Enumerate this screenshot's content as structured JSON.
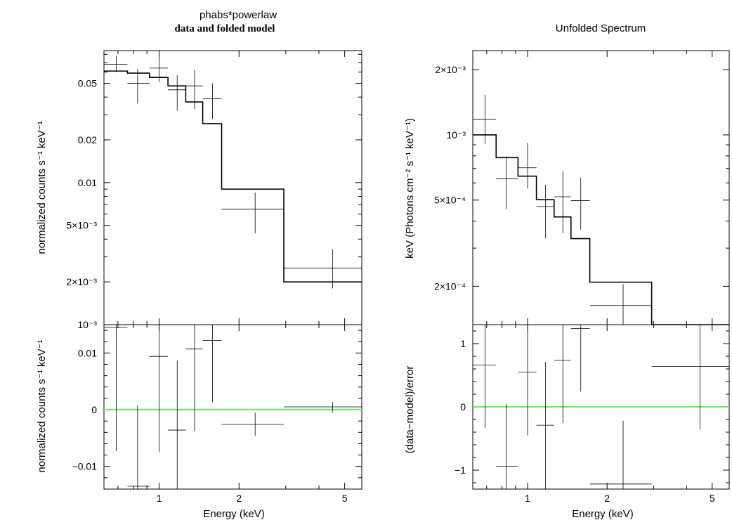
{
  "chart_data": [
    {
      "type": "step",
      "title": "phabs*powerlaw",
      "subtitle": "data and folded model",
      "xlabel": "Energy (keV)",
      "xscale": "log",
      "xlim": [
        0.62,
        5.8
      ],
      "xticks": [
        {
          "v": 1,
          "label": "1"
        },
        {
          "v": 2,
          "label": "2"
        },
        {
          "v": 5,
          "label": "5"
        }
      ],
      "top": {
        "ylabel": "normalized counts s⁻¹ keV⁻¹",
        "yscale": "log",
        "ylim": [
          0.001,
          0.085
        ],
        "yticks": [
          {
            "v": 0.05,
            "label": "0.05"
          },
          {
            "v": 0.02,
            "label": "0.02"
          },
          {
            "v": 0.01,
            "label": "0.01"
          },
          {
            "v": 0.005,
            "label": "5×10⁻³"
          },
          {
            "v": 0.002,
            "label": "2×10⁻³"
          },
          {
            "v": 0.001,
            "label": "10⁻³"
          }
        ],
        "data": [
          {
            "x": 0.69,
            "xlo": 0.62,
            "xhi": 0.76,
            "y": 0.068,
            "ylo": 0.06,
            "yhi": 0.078
          },
          {
            "x": 0.83,
            "xlo": 0.76,
            "xhi": 0.92,
            "y": 0.05,
            "ylo": 0.036,
            "yhi": 0.063
          },
          {
            "x": 1.0,
            "xlo": 0.92,
            "xhi": 1.08,
            "y": 0.064,
            "ylo": 0.051,
            "yhi": 0.084
          },
          {
            "x": 1.17,
            "xlo": 1.08,
            "xhi": 1.26,
            "y": 0.045,
            "ylo": 0.032,
            "yhi": 0.057
          },
          {
            "x": 1.36,
            "xlo": 1.26,
            "xhi": 1.46,
            "y": 0.048,
            "ylo": 0.033,
            "yhi": 0.062
          },
          {
            "x": 1.59,
            "xlo": 1.46,
            "xhi": 1.72,
            "y": 0.039,
            "ylo": 0.028,
            "yhi": 0.05
          },
          {
            "x": 2.3,
            "xlo": 1.72,
            "xhi": 2.95,
            "y": 0.0065,
            "ylo": 0.0044,
            "yhi": 0.0085
          },
          {
            "x": 4.5,
            "xlo": 2.95,
            "xhi": 5.8,
            "y": 0.0025,
            "ylo": 0.0018,
            "yhi": 0.0034
          }
        ],
        "model": [
          {
            "xlo": 0.62,
            "xhi": 0.76,
            "y": 0.061
          },
          {
            "xlo": 0.76,
            "xhi": 0.92,
            "y": 0.059
          },
          {
            "xlo": 0.92,
            "xhi": 1.08,
            "y": 0.055
          },
          {
            "xlo": 1.08,
            "xhi": 1.26,
            "y": 0.048
          },
          {
            "xlo": 1.26,
            "xhi": 1.46,
            "y": 0.037
          },
          {
            "xlo": 1.46,
            "xhi": 1.72,
            "y": 0.026
          },
          {
            "xlo": 1.72,
            "xhi": 2.95,
            "y": 0.009
          },
          {
            "xlo": 2.95,
            "xhi": 5.8,
            "y": 0.002
          }
        ]
      },
      "bottom": {
        "ylabel": "normalized counts s⁻¹ keV⁻¹",
        "yscale": "linear",
        "ylim": [
          -0.014,
          0.015
        ],
        "yticks": [
          {
            "v": 0.01,
            "label": "0.01"
          },
          {
            "v": 0,
            "label": "0"
          },
          {
            "v": -0.01,
            "label": "−0.01"
          }
        ],
        "zero_line_color": "#66ee66",
        "data": [
          {
            "x": 0.69,
            "xlo": 0.62,
            "xhi": 0.76,
            "y": 0.0145,
            "ylo": -0.0073,
            "yhi": 0.015
          },
          {
            "x": 0.83,
            "xlo": 0.76,
            "xhi": 0.92,
            "y": -0.0135,
            "ylo": -0.014,
            "yhi": 0.0008
          },
          {
            "x": 1.0,
            "xlo": 0.92,
            "xhi": 1.08,
            "y": 0.0094,
            "ylo": -0.0075,
            "yhi": 0.015
          },
          {
            "x": 1.17,
            "xlo": 1.08,
            "xhi": 1.26,
            "y": -0.0036,
            "ylo": -0.014,
            "yhi": 0.0087
          },
          {
            "x": 1.36,
            "xlo": 1.26,
            "xhi": 1.46,
            "y": 0.0107,
            "ylo": -0.0038,
            "yhi": 0.015
          },
          {
            "x": 1.59,
            "xlo": 1.46,
            "xhi": 1.72,
            "y": 0.0122,
            "ylo": 0.0013,
            "yhi": 0.015
          },
          {
            "x": 2.3,
            "xlo": 1.72,
            "xhi": 2.95,
            "y": -0.0026,
            "ylo": -0.0046,
            "yhi": -0.0005
          },
          {
            "x": 4.5,
            "xlo": 2.95,
            "xhi": 5.8,
            "y": 0.0005,
            "ylo": -0.0005,
            "yhi": 0.0014
          }
        ]
      }
    },
    {
      "type": "step",
      "title": "Unfolded Spectrum",
      "xlabel": "Energy (keV)",
      "xscale": "log",
      "xlim": [
        0.62,
        5.8
      ],
      "xticks": [
        {
          "v": 1,
          "label": "1"
        },
        {
          "v": 2,
          "label": "2"
        },
        {
          "v": 5,
          "label": "5"
        }
      ],
      "top": {
        "ylabel": "keV (Photons cm⁻² s⁻¹ keV⁻¹)",
        "yscale": "log",
        "ylim": [
          0.000133,
          0.00245
        ],
        "yticks": [
          {
            "v": 0.002,
            "label": "2×10⁻³"
          },
          {
            "v": 0.001,
            "label": "10⁻³"
          },
          {
            "v": 0.0005,
            "label": "5×10⁻⁴"
          },
          {
            "v": 0.0002,
            "label": "2×10⁻⁴"
          }
        ],
        "data": [
          {
            "x": 0.69,
            "xlo": 0.62,
            "xhi": 0.76,
            "y": 0.00118,
            "ylo": 0.00091,
            "yhi": 0.00153
          },
          {
            "x": 0.83,
            "xlo": 0.76,
            "xhi": 0.92,
            "y": 0.000627,
            "ylo": 0.000455,
            "yhi": 0.000795
          },
          {
            "x": 1.0,
            "xlo": 0.92,
            "xhi": 1.08,
            "y": 0.000705,
            "ylo": 0.000565,
            "yhi": 0.00092
          },
          {
            "x": 1.17,
            "xlo": 1.08,
            "xhi": 1.26,
            "y": 0.000467,
            "ylo": 0.000333,
            "yhi": 0.000588
          },
          {
            "x": 1.36,
            "xlo": 1.26,
            "xhi": 1.46,
            "y": 0.000518,
            "ylo": 0.000353,
            "yhi": 0.00068
          },
          {
            "x": 1.59,
            "xlo": 1.46,
            "xhi": 1.72,
            "y": 0.000497,
            "ylo": 0.000365,
            "yhi": 0.000635
          },
          {
            "x": 2.3,
            "xlo": 1.72,
            "xhi": 2.95,
            "y": 0.000163,
            "ylo": 0.000133,
            "yhi": 0.000205
          },
          {
            "x": 4.5,
            "xlo": 2.95,
            "xhi": 5.8,
            "y": 0.00013,
            "ylo": 0.00013,
            "yhi": 0.00013
          }
        ],
        "model": [
          {
            "xlo": 0.62,
            "xhi": 0.76,
            "y": 0.001
          },
          {
            "xlo": 0.76,
            "xhi": 0.92,
            "y": 0.000785
          },
          {
            "xlo": 0.92,
            "xhi": 1.08,
            "y": 0.000645
          },
          {
            "xlo": 1.08,
            "xhi": 1.26,
            "y": 0.000502
          },
          {
            "xlo": 1.26,
            "xhi": 1.46,
            "y": 0.000418
          },
          {
            "xlo": 1.46,
            "xhi": 1.72,
            "y": 0.000332
          },
          {
            "xlo": 1.72,
            "xhi": 2.95,
            "y": 0.000209
          },
          {
            "xlo": 2.95,
            "xhi": 5.8,
            "y": 0.00013
          }
        ]
      },
      "bottom": {
        "ylabel": "(data−model)/error",
        "yscale": "linear",
        "ylim": [
          -1.3,
          1.3
        ],
        "yticks": [
          {
            "v": 1,
            "label": "1"
          },
          {
            "v": 0,
            "label": "0"
          },
          {
            "v": -1,
            "label": "−1"
          }
        ],
        "zero_line_color": "#66ee66",
        "data": [
          {
            "x": 0.69,
            "xlo": 0.62,
            "xhi": 0.76,
            "y": 0.66,
            "ylo": -0.34,
            "yhi": 1.3
          },
          {
            "x": 0.83,
            "xlo": 0.76,
            "xhi": 0.92,
            "y": -0.94,
            "ylo": -1.3,
            "yhi": 0.05
          },
          {
            "x": 1.0,
            "xlo": 0.92,
            "xhi": 1.08,
            "y": 0.55,
            "ylo": -0.45,
            "yhi": 1.3
          },
          {
            "x": 1.17,
            "xlo": 1.08,
            "xhi": 1.26,
            "y": -0.29,
            "ylo": -1.3,
            "yhi": 0.71
          },
          {
            "x": 1.36,
            "xlo": 1.26,
            "xhi": 1.46,
            "y": 0.74,
            "ylo": -0.26,
            "yhi": 1.3
          },
          {
            "x": 1.59,
            "xlo": 1.46,
            "xhi": 1.72,
            "y": 1.24,
            "ylo": 0.24,
            "yhi": 1.3
          },
          {
            "x": 2.3,
            "xlo": 1.72,
            "xhi": 2.95,
            "y": -1.22,
            "ylo": -1.3,
            "yhi": -0.22
          },
          {
            "x": 4.5,
            "xlo": 2.95,
            "xhi": 5.8,
            "y": 0.64,
            "ylo": -0.36,
            "yhi": 1.3
          }
        ]
      }
    }
  ]
}
